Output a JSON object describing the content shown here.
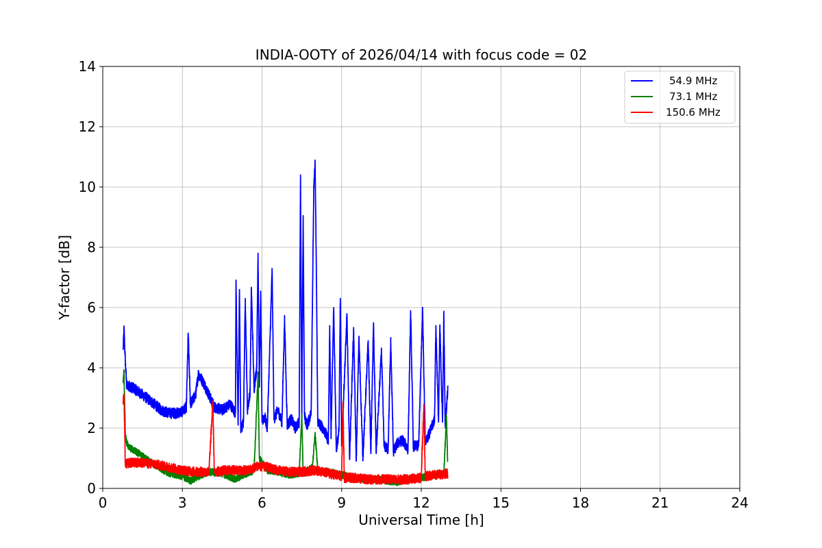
{
  "chart_data": {
    "type": "line",
    "title": "INDIA-OOTY of 2026/04/14 with focus code = 02",
    "xlabel": "Universal Time [h]",
    "ylabel": "Y-factor [dB]",
    "xlim": [
      0,
      24
    ],
    "ylim": [
      0,
      14
    ],
    "xticks": [
      0,
      3,
      6,
      9,
      12,
      15,
      18,
      21,
      24
    ],
    "yticks": [
      0,
      2,
      4,
      6,
      8,
      10,
      12,
      14
    ],
    "grid": true,
    "legend_position": "top-right",
    "series": [
      {
        "name": "54.9 MHz",
        "color": "#0000ff",
        "data_range_h": [
          0.77,
          13.0
        ],
        "points": [
          [
            0.77,
            4.6
          ],
          [
            0.8,
            5.3
          ],
          [
            0.85,
            4.2
          ],
          [
            0.9,
            3.4
          ],
          [
            1.0,
            3.4
          ],
          [
            1.2,
            3.3
          ],
          [
            1.5,
            3.1
          ],
          [
            1.8,
            2.9
          ],
          [
            2.0,
            2.75
          ],
          [
            2.2,
            2.6
          ],
          [
            2.5,
            2.5
          ],
          [
            2.8,
            2.5
          ],
          [
            3.0,
            2.55
          ],
          [
            3.15,
            2.7
          ],
          [
            3.22,
            5.15
          ],
          [
            3.3,
            2.8
          ],
          [
            3.5,
            3.1
          ],
          [
            3.6,
            3.8
          ],
          [
            3.8,
            3.5
          ],
          [
            4.0,
            3.1
          ],
          [
            4.2,
            2.7
          ],
          [
            4.5,
            2.6
          ],
          [
            4.8,
            2.8
          ],
          [
            5.0,
            2.5
          ],
          [
            5.02,
            6.9
          ],
          [
            5.1,
            2.1
          ],
          [
            5.15,
            6.6
          ],
          [
            5.2,
            1.9
          ],
          [
            5.3,
            2.2
          ],
          [
            5.37,
            6.3
          ],
          [
            5.45,
            2.6
          ],
          [
            5.55,
            3.2
          ],
          [
            5.6,
            6.65
          ],
          [
            5.7,
            3.3
          ],
          [
            5.8,
            4.0
          ],
          [
            5.85,
            7.8
          ],
          [
            5.9,
            3.4
          ],
          [
            5.95,
            6.4
          ],
          [
            6.0,
            2.2
          ],
          [
            6.1,
            2.4
          ],
          [
            6.2,
            2.0
          ],
          [
            6.3,
            4.9
          ],
          [
            6.38,
            7.25
          ],
          [
            6.45,
            2.3
          ],
          [
            6.6,
            2.6
          ],
          [
            6.75,
            2.2
          ],
          [
            6.85,
            5.6
          ],
          [
            6.95,
            2.1
          ],
          [
            7.1,
            2.3
          ],
          [
            7.25,
            2.0
          ],
          [
            7.4,
            2.2
          ],
          [
            7.45,
            10.4
          ],
          [
            7.5,
            2.3
          ],
          [
            7.55,
            9.05
          ],
          [
            7.6,
            2.4
          ],
          [
            7.7,
            2.1
          ],
          [
            7.85,
            2.5
          ],
          [
            7.95,
            9.9
          ],
          [
            8.0,
            10.8
          ],
          [
            8.05,
            7.0
          ],
          [
            8.1,
            2.2
          ],
          [
            8.3,
            2.0
          ],
          [
            8.5,
            1.6
          ],
          [
            8.55,
            5.4
          ],
          [
            8.6,
            1.7
          ],
          [
            8.7,
            6.0
          ],
          [
            8.8,
            1.3
          ],
          [
            8.9,
            1.9
          ],
          [
            8.95,
            6.3
          ],
          [
            9.0,
            1.4
          ],
          [
            9.2,
            5.75
          ],
          [
            9.3,
            1.0
          ],
          [
            9.45,
            5.3
          ],
          [
            9.55,
            0.9
          ],
          [
            9.65,
            5.0
          ],
          [
            9.8,
            1.0
          ],
          [
            10.0,
            4.9
          ],
          [
            10.1,
            1.2
          ],
          [
            10.2,
            5.45
          ],
          [
            10.3,
            1.2
          ],
          [
            10.5,
            4.55
          ],
          [
            10.6,
            1.4
          ],
          [
            10.75,
            1.3
          ],
          [
            10.85,
            4.85
          ],
          [
            10.95,
            1.2
          ],
          [
            11.1,
            1.5
          ],
          [
            11.3,
            1.6
          ],
          [
            11.5,
            1.3
          ],
          [
            11.6,
            5.85
          ],
          [
            11.7,
            1.4
          ],
          [
            11.9,
            1.4
          ],
          [
            12.05,
            5.9
          ],
          [
            12.15,
            1.6
          ],
          [
            12.3,
            1.8
          ],
          [
            12.5,
            2.3
          ],
          [
            12.55,
            5.4
          ],
          [
            12.65,
            2.2
          ],
          [
            12.7,
            5.4
          ],
          [
            12.8,
            2.2
          ],
          [
            12.85,
            5.75
          ],
          [
            12.9,
            2.1
          ],
          [
            13.0,
            3.3
          ]
        ]
      },
      {
        "name": "73.1 MHz",
        "color": "#008000",
        "data_range_h": [
          0.77,
          13.0
        ],
        "points": [
          [
            0.77,
            3.6
          ],
          [
            0.8,
            3.9
          ],
          [
            0.85,
            1.8
          ],
          [
            0.9,
            1.5
          ],
          [
            1.0,
            1.35
          ],
          [
            1.3,
            1.2
          ],
          [
            1.6,
            1.0
          ],
          [
            2.0,
            0.75
          ],
          [
            2.5,
            0.5
          ],
          [
            3.0,
            0.4
          ],
          [
            3.3,
            0.25
          ],
          [
            3.6,
            0.4
          ],
          [
            4.0,
            0.55
          ],
          [
            4.5,
            0.5
          ],
          [
            5.0,
            0.3
          ],
          [
            5.3,
            0.45
          ],
          [
            5.7,
            0.6
          ],
          [
            5.85,
            3.8
          ],
          [
            5.9,
            1.0
          ],
          [
            6.2,
            0.6
          ],
          [
            6.6,
            0.55
          ],
          [
            7.0,
            0.45
          ],
          [
            7.4,
            0.5
          ],
          [
            7.5,
            2.4
          ],
          [
            7.55,
            0.5
          ],
          [
            7.9,
            0.7
          ],
          [
            8.0,
            1.8
          ],
          [
            8.1,
            0.6
          ],
          [
            8.5,
            0.55
          ],
          [
            9.0,
            0.45
          ],
          [
            9.5,
            0.35
          ],
          [
            10.0,
            0.3
          ],
          [
            10.5,
            0.3
          ],
          [
            11.0,
            0.2
          ],
          [
            11.5,
            0.3
          ],
          [
            12.0,
            0.35
          ],
          [
            12.5,
            0.45
          ],
          [
            12.85,
            0.5
          ],
          [
            12.95,
            2.4
          ],
          [
            13.0,
            0.7
          ]
        ]
      },
      {
        "name": "150.6 MHz",
        "color": "#ff0000",
        "data_range_h": [
          0.77,
          13.0
        ],
        "points": [
          [
            0.77,
            2.9
          ],
          [
            0.8,
            3.1
          ],
          [
            0.85,
            0.8
          ],
          [
            1.0,
            0.85
          ],
          [
            1.5,
            0.85
          ],
          [
            2.0,
            0.8
          ],
          [
            2.5,
            0.7
          ],
          [
            3.0,
            0.6
          ],
          [
            3.5,
            0.55
          ],
          [
            4.0,
            0.55
          ],
          [
            4.15,
            2.9
          ],
          [
            4.2,
            0.55
          ],
          [
            4.6,
            0.6
          ],
          [
            5.0,
            0.6
          ],
          [
            5.5,
            0.6
          ],
          [
            5.85,
            0.75
          ],
          [
            6.2,
            0.7
          ],
          [
            6.6,
            0.6
          ],
          [
            7.0,
            0.55
          ],
          [
            7.5,
            0.55
          ],
          [
            8.0,
            0.6
          ],
          [
            8.5,
            0.5
          ],
          [
            9.0,
            0.4
          ],
          [
            9.05,
            2.8
          ],
          [
            9.1,
            0.35
          ],
          [
            9.5,
            0.35
          ],
          [
            10.0,
            0.3
          ],
          [
            10.5,
            0.3
          ],
          [
            11.0,
            0.3
          ],
          [
            11.5,
            0.3
          ],
          [
            12.0,
            0.35
          ],
          [
            12.1,
            2.75
          ],
          [
            12.15,
            0.4
          ],
          [
            12.5,
            0.45
          ],
          [
            13.0,
            0.5
          ]
        ]
      }
    ]
  }
}
